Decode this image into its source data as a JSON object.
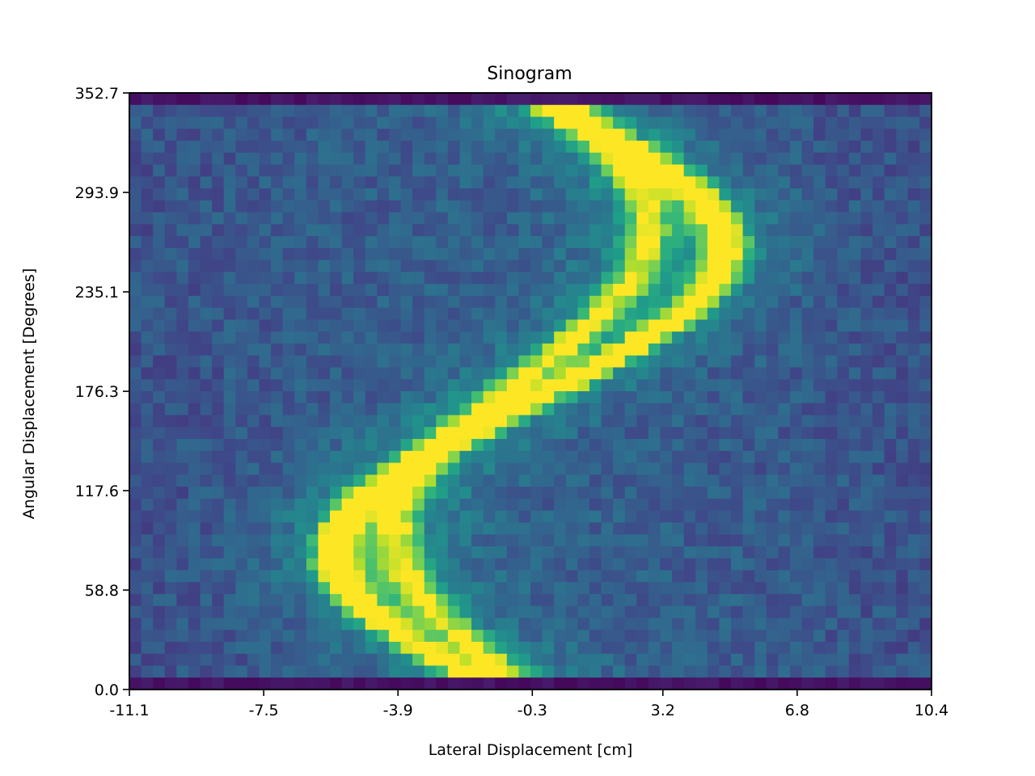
{
  "chart_data": {
    "type": "heatmap",
    "title": "Sinogram",
    "xlabel": "Lateral Displacement [cm]",
    "ylabel": "Angular Displacement [Degrees]",
    "x_tick_labels": [
      "-11.1",
      "-7.5",
      "-3.9",
      "-0.3",
      "3.2",
      "6.8",
      "10.4"
    ],
    "y_tick_labels": [
      "0.0",
      "58.8",
      "117.6",
      "176.3",
      "235.1",
      "293.9",
      "352.7"
    ],
    "xlim": [
      -11.1,
      10.4
    ],
    "ylim": [
      352.7,
      0.0
    ],
    "colormap": "viridis",
    "grid": false,
    "pixel_grid": {
      "columns": 68,
      "rows": 50
    },
    "trace": {
      "description": "two bright sinusoidal tracks",
      "curves": [
        {
          "center_cm": -0.35,
          "amplitude_cm": 5.2,
          "peak_angle_deg": 92,
          "peak_value": 0.92
        },
        {
          "center_cm": -0.6,
          "amplitude_cm": 3.4,
          "peak_angle_deg": 80,
          "peak_value": 0.62
        }
      ]
    }
  }
}
